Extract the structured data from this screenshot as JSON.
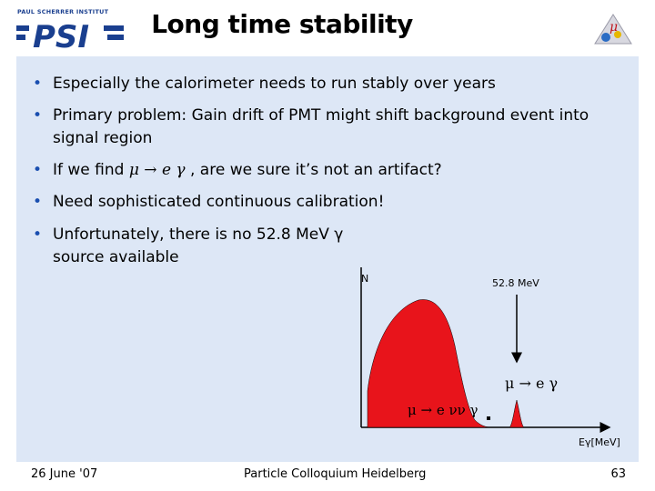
{
  "header": {
    "title": "Long time stability",
    "logo_caption": "PAUL SCHERRER INSTITUT",
    "logo_text": "PSI"
  },
  "bullets": {
    "b1": "Especially the calorimeter needs to run stably over years",
    "b2": "Primary problem: Gain drift of PMT might shift background event into signal region",
    "b3_pre": "If we find ",
    "b3_formula": "μ → e γ",
    "b3_post": " , are we sure it’s not an artifact?",
    "b4": "Need sophisticated continuous calibration!",
    "b5": "Unfortunately, there is no 52.8 MeV γ source available"
  },
  "diagram": {
    "y_axis_label": "N",
    "arrow_label": "52.8 MeV",
    "signal_label": "μ → e γ",
    "background_label": "μ → e νν γ",
    "x_axis_label": "Eγ[MeV]"
  },
  "footer": {
    "date": "26 June '07",
    "center": "Particle Colloquium Heidelberg",
    "page": "63"
  },
  "colors": {
    "background_panel": "#dde7f6",
    "spectrum_fill": "#e8141b",
    "bullet": "#1a4fb0",
    "logo_blue": "#1a3f8f"
  }
}
